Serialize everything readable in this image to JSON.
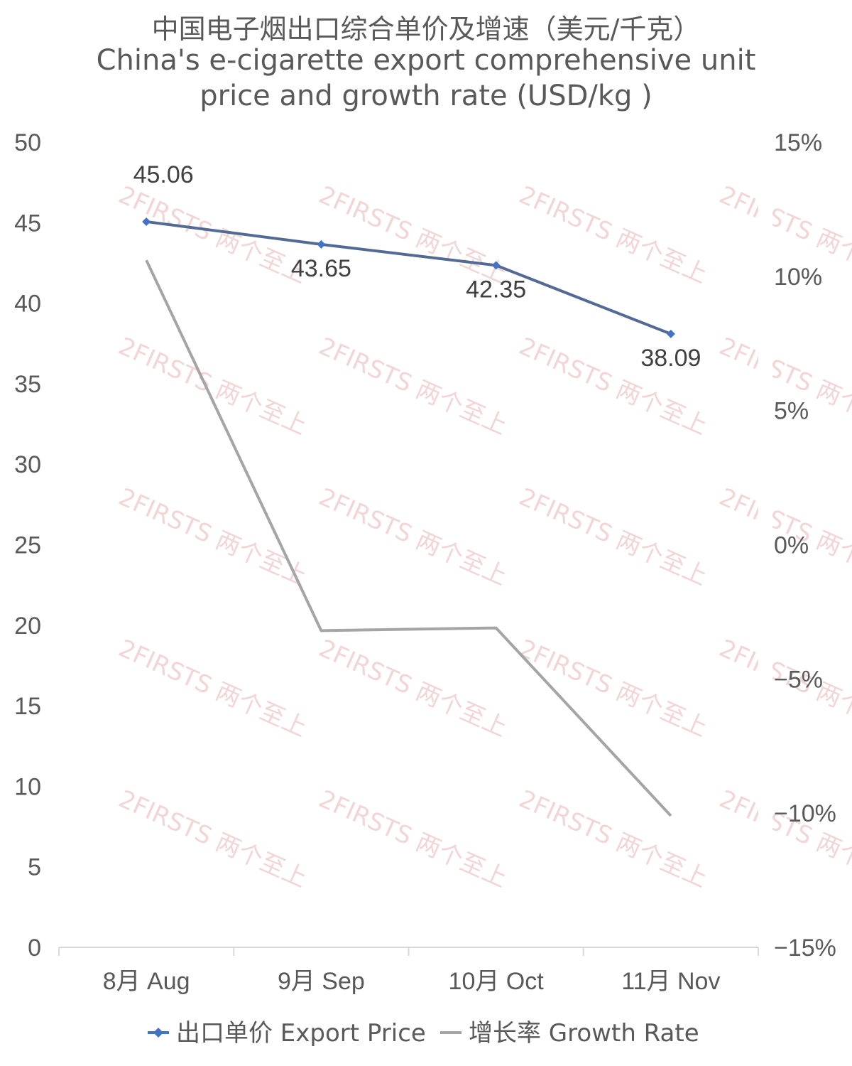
{
  "chart_data": {
    "type": "line",
    "title_cn": "中国电子烟出口综合单价及增速（美元/千克）",
    "title_en_line1": "China's e-cigarette export comprehensive unit",
    "title_en_line2": "price and growth rate (USD/kg )",
    "categories": [
      "8月 Aug",
      "9月 Sep",
      "10月 Oct",
      "11月 Nov"
    ],
    "y_left": {
      "ylim": [
        0,
        50
      ],
      "ticks": [
        "0",
        "5",
        "10",
        "15",
        "20",
        "25",
        "30",
        "35",
        "40",
        "45",
        "50"
      ]
    },
    "y_right": {
      "ylim": [
        -0.15,
        0.15
      ],
      "ticks": [
        "−15%",
        "−10%",
        "−5%",
        "0%",
        "5%",
        "10%",
        "15%"
      ]
    },
    "series": [
      {
        "name": "出口单价 Export Price",
        "axis": "left",
        "color": "#536b94",
        "marker_color": "#4472c4",
        "values": [
          45.06,
          43.65,
          42.35,
          38.09
        ],
        "labels": [
          "45.06",
          "43.65",
          "42.35",
          "38.09"
        ]
      },
      {
        "name": "增长率 Growth Rate",
        "axis": "right",
        "color": "#a5a5a5",
        "values": [
          0.106,
          -0.032,
          -0.031,
          -0.101
        ]
      }
    ],
    "legend_position": "bottom",
    "grid": false,
    "watermark": "2FIRSTS 两个至上"
  }
}
